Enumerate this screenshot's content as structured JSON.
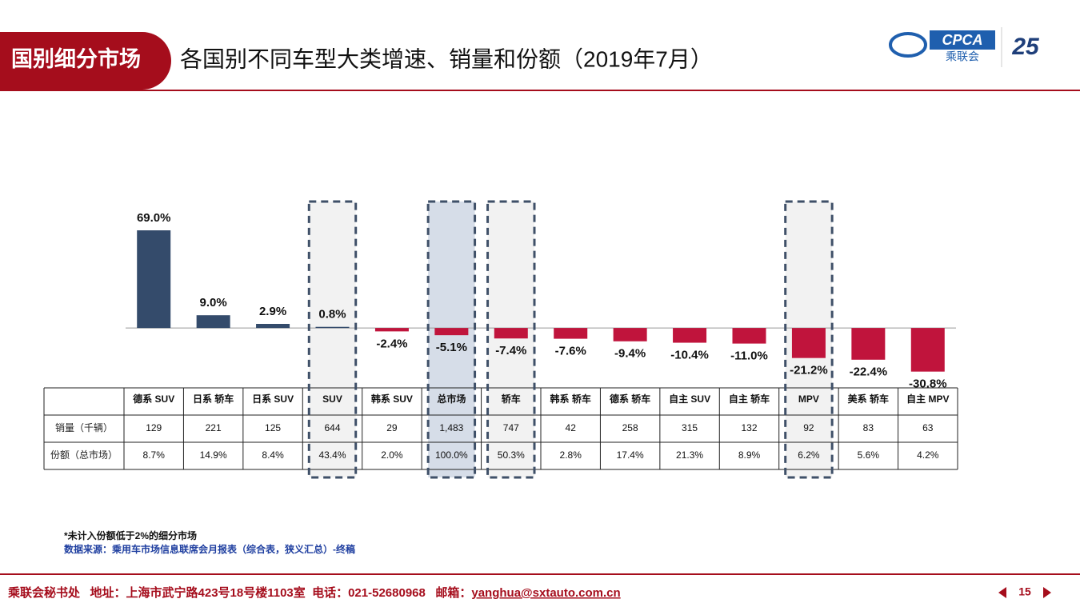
{
  "header": {
    "tab": "国别细分市场",
    "title": "各国别不同车型大类增速、销量和份额（2019年7月）",
    "logo_text": "CPCA",
    "logo_cn": "乘联会",
    "anniversary": "25"
  },
  "chart_data": {
    "type": "bar",
    "categories": [
      "德系 SUV",
      "日系 轿车",
      "日系 SUV",
      "SUV",
      "韩系 SUV",
      "总市场",
      "轿车",
      "韩系 轿车",
      "德系 轿车",
      "自主 SUV",
      "自主 轿车",
      "MPV",
      "美系 轿车",
      "自主 MPV"
    ],
    "values": [
      69.0,
      9.0,
      2.9,
      0.8,
      -2.4,
      -5.1,
      -7.4,
      -7.6,
      -9.4,
      -10.4,
      -11.0,
      -21.2,
      -22.4,
      -30.8
    ],
    "value_labels": [
      "69.0%",
      "9.0%",
      "2.9%",
      "0.8%",
      "-2.4%",
      "-5.1%",
      "-7.4%",
      "-7.6%",
      "-9.4%",
      "-10.4%",
      "-11.0%",
      "-21.2%",
      "-22.4%",
      "-30.8%"
    ],
    "positive_color": "#344b6b",
    "negative_color": "#c0143c",
    "ylim": [
      -31,
      69
    ],
    "highlight": [
      3,
      5,
      6,
      11
    ],
    "highlight_strong": [
      5
    ],
    "table": {
      "rows": [
        {
          "label": "销量（千辆）",
          "cells": [
            "129",
            "221",
            "125",
            "644",
            "29",
            "1,483",
            "747",
            "42",
            "258",
            "315",
            "132",
            "92",
            "83",
            "63"
          ]
        },
        {
          "label": "份额（总市场）",
          "cells": [
            "8.7%",
            "14.9%",
            "8.4%",
            "43.4%",
            "2.0%",
            "100.0%",
            "50.3%",
            "2.8%",
            "17.4%",
            "21.3%",
            "8.9%",
            "6.2%",
            "5.6%",
            "4.2%"
          ]
        }
      ]
    }
  },
  "notes": [
    "*未计入份额低于2%的细分市场",
    "数据来源：乘用车市场信息联席会月报表（综合表，狭义汇总）-终稿"
  ],
  "footer": {
    "text": "乘联会秘书处   地址：上海市武宁路423号18号楼1103室  电话：021-52680968   邮箱：",
    "email": "yanghua@sxtauto.com.cn",
    "page": "15"
  }
}
